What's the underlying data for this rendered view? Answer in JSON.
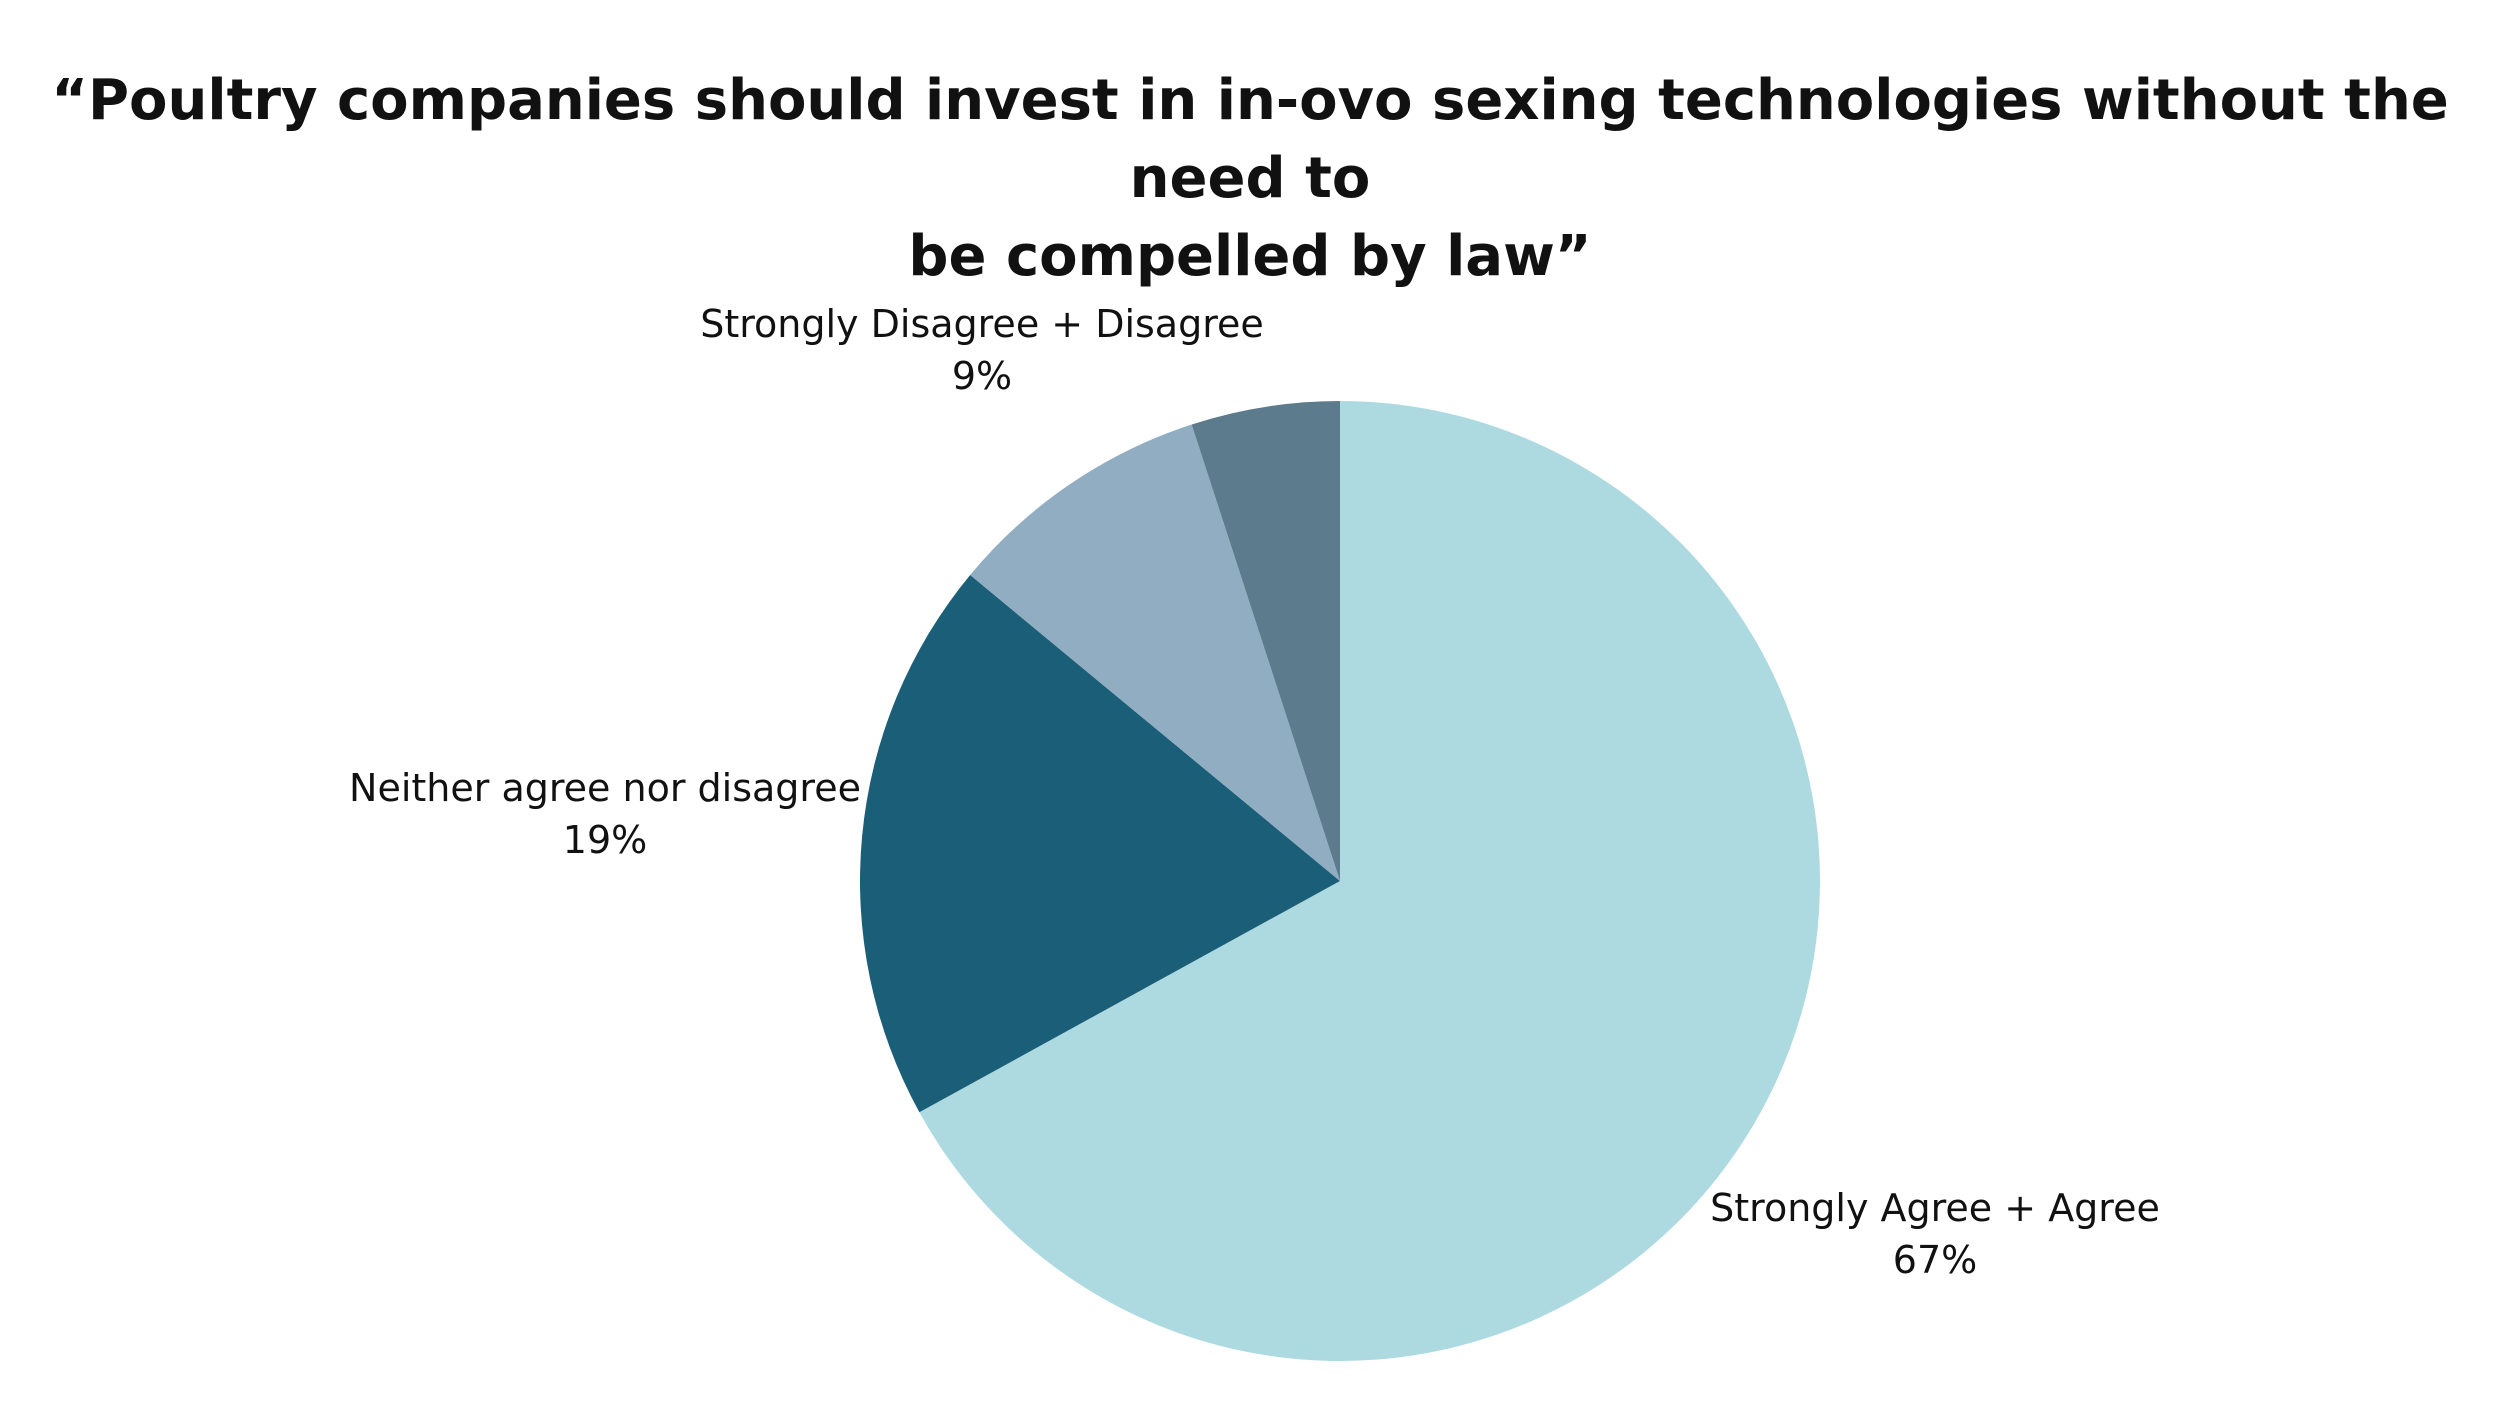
{
  "chart_data": {
    "type": "pie",
    "title_lines": [
      "“Poultry companies should invest in in-ovo sexing technologies without the need to",
      "be compelled by law”"
    ],
    "slices": [
      {
        "label": "Strongly Agree + Agree",
        "value_label": "67%",
        "value": 67,
        "color": "#acdae0"
      },
      {
        "label": "Neither agree nor disagree",
        "value_label": "19%",
        "value": 19,
        "color": "#1b5e78"
      },
      {
        "label": "Strongly Disagree + Disagree",
        "value_label": "9%",
        "value": 9,
        "color": "#91adc1"
      },
      {
        "label": "",
        "value_label": "",
        "value": 5,
        "color": "#5c7b8c"
      }
    ],
    "start_angle": "12 o'clock",
    "direction": "clockwise",
    "legend": "none"
  }
}
